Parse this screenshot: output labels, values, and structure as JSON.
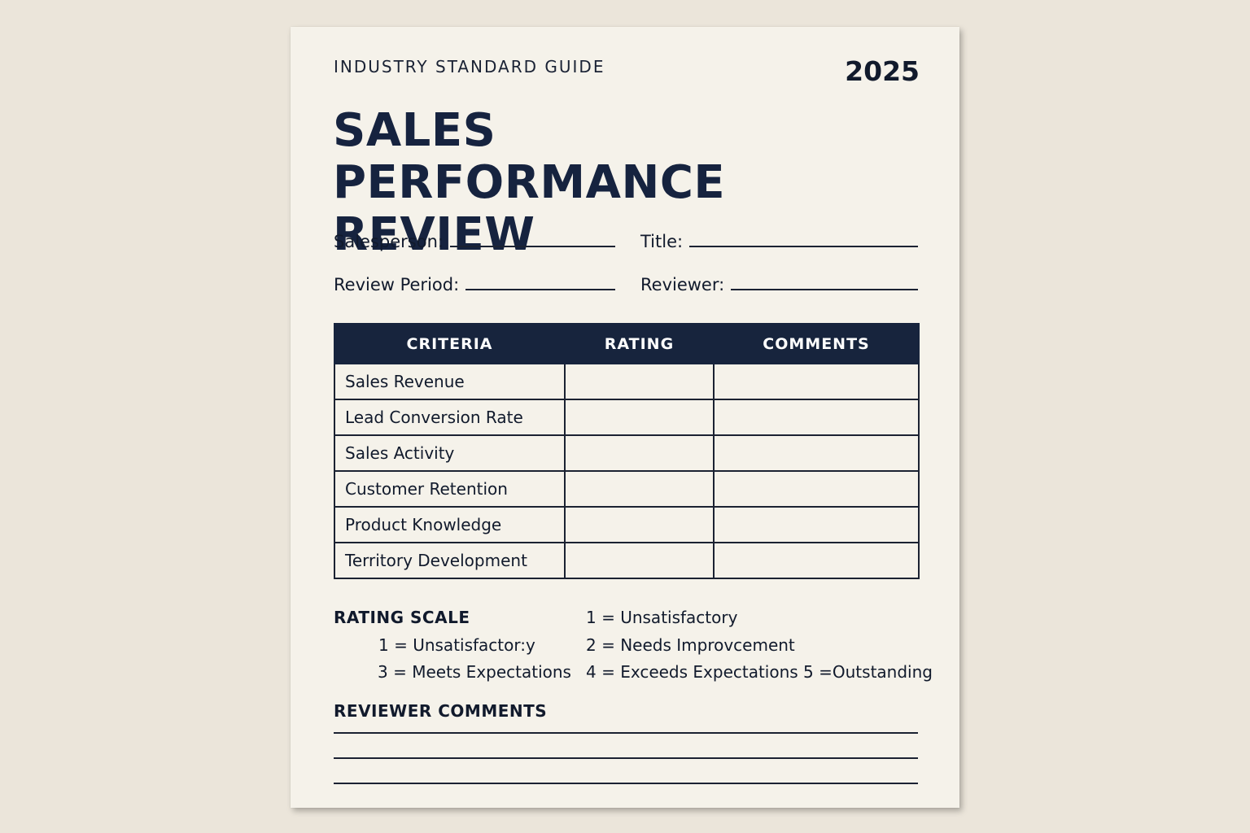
{
  "header": {
    "eyebrow": "INDUSTRY STANDARD GUIDE",
    "year": "2025",
    "title": "SALES PERFORMANCE REVIEW"
  },
  "fields": {
    "salesperson": "Salesperson:",
    "title": "Title:",
    "review_period": "Review Period:",
    "reviewer": "Reviewer:"
  },
  "table": {
    "columns": [
      "CRITERIA",
      "RATING",
      "COMMENTS"
    ],
    "rows": [
      {
        "criteria": "Sales Revenue",
        "rating": "",
        "comments": ""
      },
      {
        "criteria": "Lead Conversion Rate",
        "rating": "",
        "comments": ""
      },
      {
        "criteria": "Sales Activity",
        "rating": "",
        "comments": ""
      },
      {
        "criteria": "Customer Retention",
        "rating": "",
        "comments": ""
      },
      {
        "criteria": "Product Knowledge",
        "rating": "",
        "comments": ""
      },
      {
        "criteria": "Territory Development",
        "rating": "",
        "comments": ""
      }
    ]
  },
  "rating_scale": {
    "title": "RATING SCALE",
    "items": [
      "1 = Unsatisfactory",
      "1 = Unsatisfactor:y",
      "2 = Needs Improvcement",
      "3 = Meets Expectations",
      "4 = Exceeds Expectations 5 =Outstanding"
    ]
  },
  "reviewer_comments": {
    "title": "REVIEWER COMMENTS"
  },
  "colors": {
    "background": "#ebe5da",
    "paper": "#f5f2ea",
    "navy": "#17243d",
    "ink": "#111a2c"
  }
}
